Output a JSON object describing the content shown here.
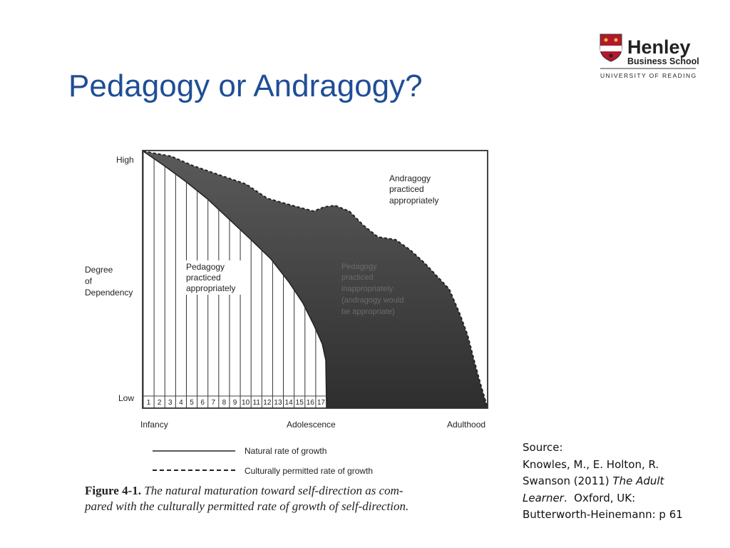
{
  "header": {
    "title": "Pedagogy or Andragogy?",
    "logo": {
      "name": "Henley",
      "school": "Business School",
      "university": "UNIVERSITY OF READING"
    }
  },
  "figure": {
    "y_axis": {
      "high": "High",
      "label": [
        "Degree",
        "of",
        "Dependency"
      ],
      "low": "Low"
    },
    "x_axis": {
      "start": "Infancy",
      "middle": "Adolescence",
      "end": "Adulthood"
    },
    "columns": [
      "1",
      "2",
      "3",
      "4",
      "5",
      "6",
      "7",
      "8",
      "9",
      "10",
      "11",
      "12",
      "13",
      "14",
      "15",
      "16",
      "17"
    ],
    "regions": {
      "pedagogy_appropriate": [
        "Pedagogy",
        "practiced",
        "appropriately"
      ],
      "andragogy_appropriate": [
        "Andragogy",
        "practiced",
        "appropriately"
      ],
      "pedagogy_inappropriate": [
        "Pedagogy",
        "practiced",
        "inappropriately",
        "(andragogy would",
        "be appropriate)"
      ]
    },
    "legend": {
      "natural": "Natural rate of growth",
      "cultural": "Culturally permitted rate of growth"
    },
    "caption": {
      "label": "Figure 4-1.",
      "lines": [
        "The natural maturation toward self-direction as com-",
        "pared with the culturally permitted rate of growth of self-direction."
      ]
    }
  },
  "source": {
    "lines": [
      [
        {
          "text": "Source:",
          "italic": false
        }
      ],
      [
        {
          "text": "Knowles, M., E. Holton, R.",
          "italic": false
        }
      ],
      [
        {
          "text": "Swanson (2011) ",
          "italic": false
        },
        {
          "text": "The Adult",
          "italic": true
        }
      ],
      [
        {
          "text": "Learner",
          "italic": true
        },
        {
          "text": ".  Oxford, UK:",
          "italic": false
        }
      ],
      [
        {
          "text": "Butterworth-Heinemann: p 61",
          "italic": false
        }
      ]
    ]
  }
}
